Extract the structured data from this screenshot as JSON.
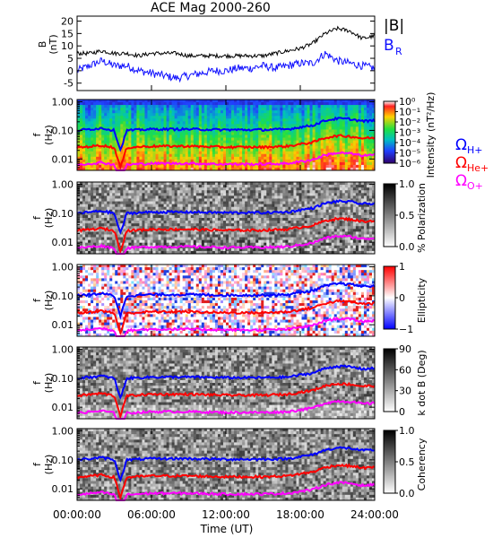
{
  "title": "ACE Mag 2000-260",
  "x_label": "Time (UT)",
  "x_ticks": [
    "00:00:00",
    "06:00:00",
    "12:00:00",
    "18:00:00",
    "24:00:00"
  ],
  "colors": {
    "bmag": "#000000",
    "br": "#1010ff",
    "h_plus": "#0000ff",
    "he_plus": "#ff0000",
    "o_plus": "#ff00ff"
  },
  "chart_data": [
    {
      "type": "line",
      "panel": "field",
      "xlabel": "",
      "ylabel": "B",
      "yunit": "(nT)",
      "ylim": [
        -8,
        22
      ],
      "xlim_hours": [
        0,
        24
      ],
      "yticks": [
        20,
        15,
        10,
        5,
        0,
        -5
      ],
      "x_hours": [
        0,
        1,
        2,
        3,
        4,
        5,
        6,
        7,
        8,
        9,
        10,
        11,
        12,
        13,
        14,
        15,
        16,
        17,
        18,
        19,
        20,
        21,
        22,
        23,
        24
      ],
      "series": [
        {
          "name": "|B|",
          "values": [
            7,
            7,
            8,
            7,
            7,
            6,
            7,
            7,
            7,
            6,
            6,
            6,
            6,
            6,
            6,
            6,
            7,
            8,
            9,
            11,
            15,
            17,
            16,
            13,
            14
          ]
        },
        {
          "name": "B_R",
          "values": [
            0,
            2,
            4,
            2,
            2,
            0,
            -1,
            -2,
            -3,
            -2,
            -1,
            0,
            0,
            1,
            1,
            2,
            1,
            2,
            3,
            3,
            7,
            4,
            3,
            2,
            1
          ]
        }
      ]
    },
    {
      "type": "heatmap",
      "panel": "spectrogram-intensity",
      "ylabel": "f",
      "yunit": "(Hz)",
      "colorbar_label": "Intensity (nT²/Hz)",
      "colorbar_ticks": [
        "10⁰",
        "10⁻¹",
        "10⁻²",
        "10⁻³",
        "10⁻⁴",
        "10⁻⁵",
        "10⁻⁶"
      ]
    },
    {
      "type": "heatmap",
      "panel": "spectrogram-polarization",
      "ylabel": "f",
      "yunit": "(Hz)",
      "colorbar_label": "% Polarization",
      "colorbar_ticks": [
        "1.0",
        "0.5",
        "0.0"
      ]
    },
    {
      "type": "heatmap",
      "panel": "spectrogram-ellipticity",
      "ylabel": "f",
      "yunit": "(Hz)",
      "colorbar_label": "Ellipticity",
      "colorbar_ticks": [
        "1",
        "0",
        "−1"
      ]
    },
    {
      "type": "heatmap",
      "panel": "spectrogram-kdotb",
      "ylabel": "f",
      "yunit": "(Hz)",
      "colorbar_label": "k dot B (Deg)",
      "colorbar_ticks": [
        "90",
        "60",
        "30",
        "0"
      ]
    },
    {
      "type": "heatmap",
      "panel": "spectrogram-coherency",
      "ylabel": "f",
      "yunit": "(Hz)",
      "colorbar_label": "Coherency",
      "colorbar_ticks": [
        "1.0",
        "0.5",
        "0.0"
      ]
    }
  ],
  "spectrogram_common": {
    "ylim_hz_log": [
      0.004,
      1.2
    ],
    "yticks": [
      "1.00",
      "0.10",
      "0.01"
    ],
    "ytick_values": [
      1.0,
      0.1,
      0.01
    ],
    "x_hours": [
      0,
      2,
      3,
      3.5,
      4,
      6,
      9,
      12,
      15,
      17,
      18,
      19,
      20,
      21,
      22,
      23,
      24
    ],
    "gyro_lines": [
      {
        "name": "Ω_H+",
        "label_main": "Ω",
        "label_sub": "H+",
        "values_hz": [
          0.1,
          0.12,
          0.1,
          0.02,
          0.1,
          0.11,
          0.11,
          0.105,
          0.105,
          0.11,
          0.13,
          0.15,
          0.22,
          0.26,
          0.25,
          0.21,
          0.22
        ]
      },
      {
        "name": "Ω_He+",
        "label_main": "Ω",
        "label_sub": "He+",
        "values_hz": [
          0.025,
          0.03,
          0.025,
          0.005,
          0.025,
          0.028,
          0.028,
          0.026,
          0.026,
          0.028,
          0.033,
          0.038,
          0.055,
          0.065,
          0.062,
          0.053,
          0.055
        ]
      },
      {
        "name": "Ω_O+",
        "label_main": "Ω",
        "label_sub": "O+",
        "values_hz": [
          0.0063,
          0.0075,
          0.0063,
          0.0015,
          0.0063,
          0.007,
          0.007,
          0.0066,
          0.0066,
          0.007,
          0.0081,
          0.0094,
          0.0138,
          0.0163,
          0.0156,
          0.0131,
          0.0138
        ]
      }
    ]
  },
  "legend": {
    "bmag": "|B|",
    "br_main": "B",
    "br_sub": "R"
  }
}
